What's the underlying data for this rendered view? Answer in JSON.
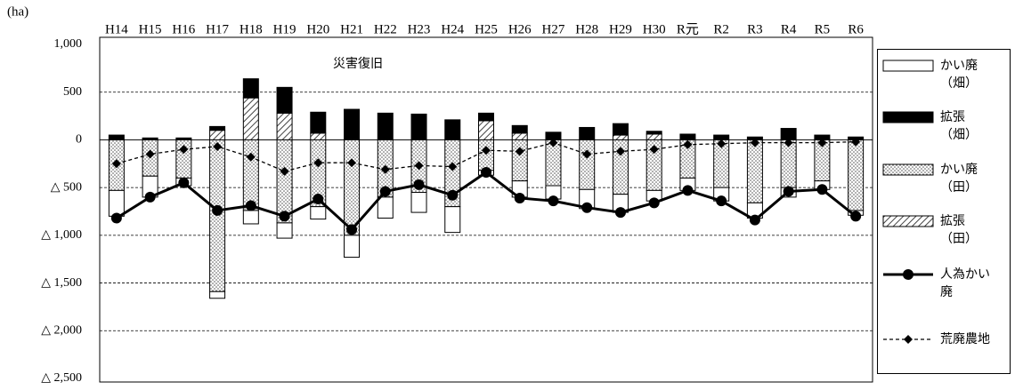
{
  "chart_data": {
    "type": "bar",
    "axis_unit": "(ha)",
    "annotation": "災害復旧",
    "categories": [
      "H14",
      "H15",
      "H16",
      "H17",
      "H18",
      "H19",
      "H20",
      "H21",
      "H22",
      "H23",
      "H24",
      "H25",
      "H26",
      "H27",
      "H28",
      "H29",
      "H30",
      "R元",
      "R2",
      "R3",
      "R4",
      "R5",
      "R6"
    ],
    "ylim": [
      -2500,
      1000
    ],
    "yticks": [
      {
        "value": 1000,
        "label": "1,000"
      },
      500,
      0,
      {
        "value": -500,
        "label": "△ 500"
      },
      {
        "value": -1000,
        "label": "△ 1,000"
      },
      {
        "value": -1500,
        "label": "△ 1,500"
      },
      {
        "value": -2000,
        "label": "△ 2,000"
      },
      {
        "value": -2500,
        "label": "△ 2,500"
      }
    ],
    "grid": true,
    "series": [
      {
        "name": "かい廃（畑）",
        "type": "bar",
        "color": "#ffffff",
        "values": [
          -270,
          -220,
          -80,
          -70,
          -140,
          -160,
          -130,
          -230,
          -220,
          -210,
          -270,
          -50,
          -170,
          -140,
          -200,
          -190,
          -110,
          -130,
          -140,
          -160,
          -100,
          -90,
          -50
        ]
      },
      {
        "name": "拡張（畑）",
        "type": "bar",
        "color": "#000000",
        "values": [
          50,
          20,
          20,
          40,
          200,
          270,
          220,
          310,
          280,
          270,
          210,
          80,
          80,
          80,
          130,
          120,
          30,
          60,
          50,
          30,
          120,
          50,
          30
        ]
      },
      {
        "name": "かい廃（田）",
        "type": "bar",
        "color": "#dddddd",
        "pattern": "dots",
        "values": [
          -530,
          -380,
          -400,
          -1590,
          -740,
          -870,
          -700,
          -1000,
          -600,
          -550,
          -700,
          -320,
          -430,
          -480,
          -520,
          -570,
          -530,
          -400,
          -500,
          -660,
          -500,
          -430,
          -740
        ]
      },
      {
        "name": "拡張（田）",
        "type": "bar",
        "color": "#999999",
        "pattern": "hatch",
        "values": [
          0,
          0,
          0,
          100,
          440,
          280,
          70,
          10,
          0,
          0,
          0,
          200,
          70,
          0,
          0,
          50,
          60,
          0,
          0,
          0,
          0,
          0,
          0
        ]
      },
      {
        "name": "人為かい廃",
        "type": "line",
        "color": "#000000",
        "marker": "circle",
        "dashed": false,
        "values": [
          -820,
          -600,
          -450,
          -740,
          -690,
          -800,
          -620,
          -940,
          -540,
          -470,
          -580,
          -340,
          -610,
          -640,
          -710,
          -760,
          -660,
          -530,
          -640,
          -840,
          -540,
          -520,
          -800
        ]
      },
      {
        "name": "荒廃農地",
        "type": "line",
        "color": "#000000",
        "marker": "diamond",
        "dashed": true,
        "values": [
          -250,
          -150,
          -100,
          -70,
          -180,
          -330,
          -240,
          -240,
          -310,
          -270,
          -280,
          -110,
          -120,
          -30,
          -150,
          -120,
          -100,
          -50,
          -40,
          -30,
          -30,
          -30,
          -20
        ]
      }
    ]
  }
}
